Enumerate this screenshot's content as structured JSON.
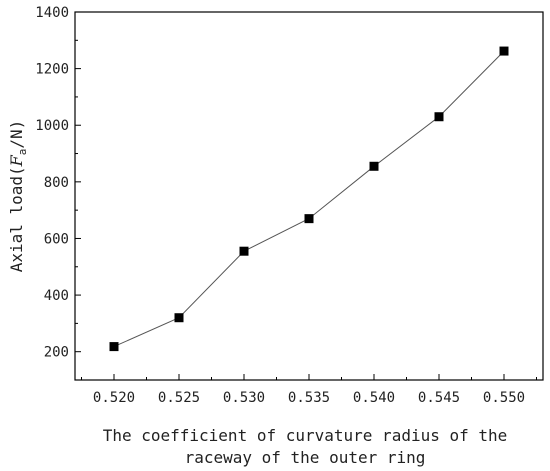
{
  "chart_data": {
    "type": "line",
    "title": "",
    "xlabel_lines": [
      "The coefficient of curvature radius of the",
      "raceway of the outer ring"
    ],
    "ylabel": {
      "prefix": "Axial load(",
      "var": "F",
      "sub": "a",
      "suffix": "/N)"
    },
    "x": [
      0.52,
      0.525,
      0.53,
      0.535,
      0.54,
      0.545,
      0.55
    ],
    "x_tick_labels": [
      "0.520",
      "0.525",
      "0.530",
      "0.535",
      "0.540",
      "0.545",
      "0.550"
    ],
    "xlim": [
      0.517,
      0.553
    ],
    "ylim": [
      100,
      1400
    ],
    "y_ticks": [
      200,
      400,
      600,
      800,
      1000,
      1200,
      1400
    ],
    "y_tick_labels": [
      "200",
      "400",
      "600",
      "800",
      "1000",
      "1200",
      "1400"
    ],
    "series": [
      {
        "values": [
          218,
          320,
          555,
          670,
          855,
          1030,
          1262
        ],
        "marker": "square",
        "color": "#000000",
        "line_color": "#555555"
      }
    ],
    "grid": false,
    "legend": "none"
  }
}
